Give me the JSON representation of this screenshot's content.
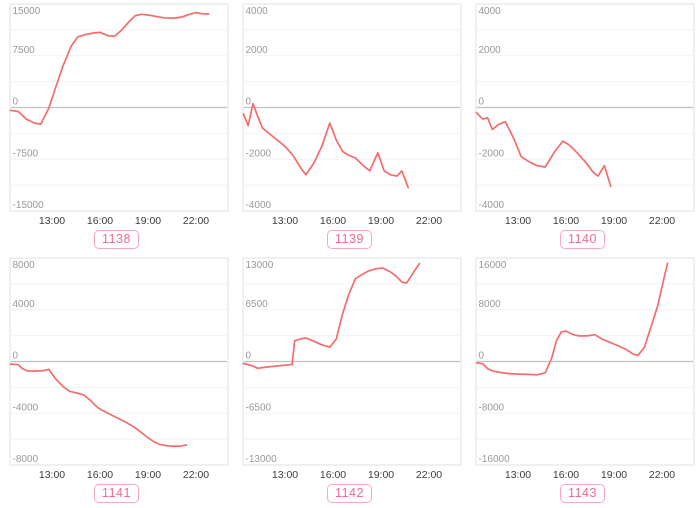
{
  "style": {
    "page_background": "#ffffff",
    "line_color": "#f56c6c",
    "plot_border_color": "#e0e0e0",
    "grid_color": "#f2f2f2",
    "zero_line_color": "#c0c0c0",
    "y_label_color": "#999999",
    "x_label_color": "#3c3c3c",
    "badge_border_color": "#f8a8bd",
    "badge_text_color": "#ee6b90"
  },
  "axis": {
    "x_ticks": [
      {
        "label": "13:00",
        "hour": 13
      },
      {
        "label": "16:00",
        "hour": 16
      },
      {
        "label": "19:00",
        "hour": 19
      },
      {
        "label": "22:00",
        "hour": 22
      }
    ],
    "x_range_hours": [
      10.4,
      24
    ],
    "grid": "horizontal-only",
    "legend": "none"
  },
  "chart_data": [
    {
      "type": "line",
      "badge": "1138",
      "ylim": [
        -15000,
        15000
      ],
      "y_ticks": [
        15000,
        7500,
        0,
        -7500,
        -15000
      ],
      "points": [
        [
          10.4,
          -400
        ],
        [
          10.9,
          -600
        ],
        [
          11.4,
          -1700
        ],
        [
          11.9,
          -2250
        ],
        [
          12.3,
          -2400
        ],
        [
          12.8,
          -100
        ],
        [
          13.2,
          2700
        ],
        [
          13.7,
          6100
        ],
        [
          14.2,
          8900
        ],
        [
          14.6,
          10200
        ],
        [
          15.1,
          10600
        ],
        [
          15.6,
          10800
        ],
        [
          16.0,
          10900
        ],
        [
          16.5,
          10400
        ],
        [
          16.9,
          10300
        ],
        [
          17.3,
          11100
        ],
        [
          17.8,
          12400
        ],
        [
          18.2,
          13300
        ],
        [
          18.6,
          13500
        ],
        [
          19.0,
          13400
        ],
        [
          19.5,
          13200
        ],
        [
          20.0,
          13000
        ],
        [
          20.6,
          12950
        ],
        [
          21.1,
          13100
        ],
        [
          21.6,
          13500
        ],
        [
          22.0,
          13750
        ],
        [
          22.4,
          13600
        ],
        [
          22.8,
          13550
        ]
      ]
    },
    {
      "type": "line",
      "badge": "1139",
      "ylim": [
        -4000,
        4000
      ],
      "y_ticks": [
        4000,
        2000,
        0,
        -2000,
        -4000
      ],
      "points": [
        [
          10.4,
          -250
        ],
        [
          10.7,
          -700
        ],
        [
          11.0,
          150
        ],
        [
          11.3,
          -350
        ],
        [
          11.6,
          -800
        ],
        [
          12.0,
          -1000
        ],
        [
          12.5,
          -1250
        ],
        [
          13.0,
          -1500
        ],
        [
          13.5,
          -1850
        ],
        [
          14.0,
          -2350
        ],
        [
          14.3,
          -2600
        ],
        [
          14.8,
          -2150
        ],
        [
          15.3,
          -1500
        ],
        [
          15.8,
          -600
        ],
        [
          16.2,
          -1250
        ],
        [
          16.6,
          -1700
        ],
        [
          17.0,
          -1850
        ],
        [
          17.4,
          -1950
        ],
        [
          17.9,
          -2250
        ],
        [
          18.3,
          -2450
        ],
        [
          18.8,
          -1750
        ],
        [
          19.2,
          -2450
        ],
        [
          19.6,
          -2600
        ],
        [
          20.0,
          -2650
        ],
        [
          20.3,
          -2450
        ],
        [
          20.7,
          -3100
        ]
      ]
    },
    {
      "type": "line",
      "badge": "1140",
      "ylim": [
        -4000,
        4000
      ],
      "y_ticks": [
        4000,
        2000,
        0,
        -2000,
        -4000
      ],
      "points": [
        [
          10.4,
          -200
        ],
        [
          10.8,
          -450
        ],
        [
          11.1,
          -400
        ],
        [
          11.4,
          -850
        ],
        [
          11.8,
          -650
        ],
        [
          12.2,
          -550
        ],
        [
          12.7,
          -1150
        ],
        [
          13.2,
          -1900
        ],
        [
          13.7,
          -2100
        ],
        [
          14.2,
          -2250
        ],
        [
          14.7,
          -2300
        ],
        [
          15.3,
          -1700
        ],
        [
          15.8,
          -1300
        ],
        [
          16.2,
          -1450
        ],
        [
          16.7,
          -1750
        ],
        [
          17.2,
          -2100
        ],
        [
          17.7,
          -2500
        ],
        [
          18.0,
          -2650
        ],
        [
          18.4,
          -2250
        ],
        [
          18.8,
          -3050
        ]
      ]
    },
    {
      "type": "line",
      "badge": "1141",
      "ylim": [
        -8000,
        8000
      ],
      "y_ticks": [
        8000,
        4000,
        0,
        -4000,
        -8000
      ],
      "points": [
        [
          10.4,
          -200
        ],
        [
          10.9,
          -250
        ],
        [
          11.1,
          -500
        ],
        [
          11.4,
          -700
        ],
        [
          11.8,
          -750
        ],
        [
          12.5,
          -700
        ],
        [
          12.8,
          -600
        ],
        [
          13.2,
          -1300
        ],
        [
          13.7,
          -1950
        ],
        [
          14.1,
          -2300
        ],
        [
          14.6,
          -2450
        ],
        [
          15.0,
          -2600
        ],
        [
          15.4,
          -3000
        ],
        [
          15.8,
          -3500
        ],
        [
          16.1,
          -3750
        ],
        [
          16.5,
          -4000
        ],
        [
          16.9,
          -4250
        ],
        [
          17.3,
          -4500
        ],
        [
          17.7,
          -4750
        ],
        [
          18.1,
          -5050
        ],
        [
          18.5,
          -5400
        ],
        [
          18.9,
          -5800
        ],
        [
          19.3,
          -6150
        ],
        [
          19.7,
          -6400
        ],
        [
          20.1,
          -6500
        ],
        [
          20.5,
          -6550
        ],
        [
          21.0,
          -6550
        ],
        [
          21.4,
          -6450
        ]
      ]
    },
    {
      "type": "line",
      "badge": "1142",
      "ylim": [
        -13000,
        13000
      ],
      "y_ticks": [
        13000,
        6500,
        0,
        -6500,
        -13000
      ],
      "points": [
        [
          10.4,
          -250
        ],
        [
          10.9,
          -500
        ],
        [
          11.3,
          -850
        ],
        [
          11.8,
          -700
        ],
        [
          12.3,
          -600
        ],
        [
          12.8,
          -500
        ],
        [
          13.3,
          -400
        ],
        [
          13.45,
          -350
        ],
        [
          13.6,
          2600
        ],
        [
          14.0,
          2850
        ],
        [
          14.3,
          2950
        ],
        [
          14.8,
          2550
        ],
        [
          15.3,
          2100
        ],
        [
          15.8,
          1800
        ],
        [
          16.2,
          2800
        ],
        [
          16.6,
          6000
        ],
        [
          17.0,
          8500
        ],
        [
          17.4,
          10400
        ],
        [
          17.8,
          10900
        ],
        [
          18.2,
          11350
        ],
        [
          18.7,
          11650
        ],
        [
          19.1,
          11750
        ],
        [
          19.5,
          11350
        ],
        [
          19.9,
          10800
        ],
        [
          20.3,
          10000
        ],
        [
          20.6,
          9850
        ],
        [
          21.1,
          11400
        ],
        [
          21.4,
          12300
        ]
      ]
    },
    {
      "type": "line",
      "badge": "1143",
      "ylim": [
        -16000,
        16000
      ],
      "y_ticks": [
        16000,
        8000,
        0,
        -8000,
        -16000
      ],
      "points": [
        [
          10.4,
          -200
        ],
        [
          10.8,
          -350
        ],
        [
          11.1,
          -1100
        ],
        [
          11.4,
          -1450
        ],
        [
          11.9,
          -1700
        ],
        [
          12.4,
          -1850
        ],
        [
          13.0,
          -1950
        ],
        [
          13.6,
          -2000
        ],
        [
          14.2,
          -2050
        ],
        [
          14.7,
          -1750
        ],
        [
          15.1,
          500
        ],
        [
          15.4,
          3200
        ],
        [
          15.7,
          4550
        ],
        [
          16.0,
          4700
        ],
        [
          16.4,
          4200
        ],
        [
          16.8,
          3950
        ],
        [
          17.3,
          3950
        ],
        [
          17.8,
          4150
        ],
        [
          18.3,
          3400
        ],
        [
          18.8,
          2900
        ],
        [
          19.3,
          2400
        ],
        [
          19.8,
          1800
        ],
        [
          20.2,
          1150
        ],
        [
          20.5,
          950
        ],
        [
          20.9,
          2200
        ],
        [
          21.2,
          4500
        ],
        [
          21.5,
          6800
        ],
        [
          21.75,
          8800
        ],
        [
          22.0,
          11500
        ],
        [
          22.2,
          13700
        ],
        [
          22.35,
          15200
        ]
      ]
    }
  ]
}
